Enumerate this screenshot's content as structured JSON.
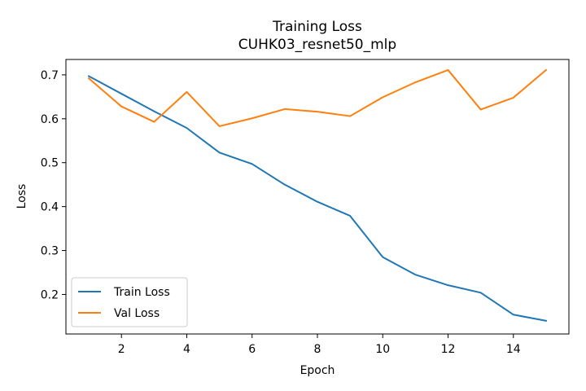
{
  "chart_data": {
    "type": "line",
    "title": "Training Loss",
    "subtitle": "CUHK03_resnet50_mlp",
    "xlabel": "Epoch",
    "ylabel": "Loss",
    "x": [
      1,
      2,
      3,
      4,
      5,
      6,
      7,
      8,
      9,
      10,
      11,
      12,
      13,
      14,
      15
    ],
    "xlim": [
      0.3,
      15.7
    ],
    "ylim": [
      0.11,
      0.735
    ],
    "xticks": [
      2,
      4,
      6,
      8,
      10,
      12,
      14
    ],
    "yticks": [
      0.2,
      0.3,
      0.4,
      0.5,
      0.6,
      0.7
    ],
    "grid": false,
    "legend_position": "lower-left",
    "series": [
      {
        "name": "Train Loss",
        "color": "#1f77b4",
        "values": [
          0.697,
          0.657,
          0.617,
          0.579,
          0.523,
          0.497,
          0.45,
          0.411,
          0.379,
          0.285,
          0.245,
          0.221,
          0.204,
          0.154,
          0.14
        ]
      },
      {
        "name": "Val Loss",
        "color": "#ff7f0e",
        "values": [
          0.692,
          0.628,
          0.593,
          0.661,
          0.583,
          0.601,
          0.622,
          0.616,
          0.606,
          0.649,
          0.683,
          0.711,
          0.621,
          0.648,
          0.711
        ]
      }
    ]
  }
}
